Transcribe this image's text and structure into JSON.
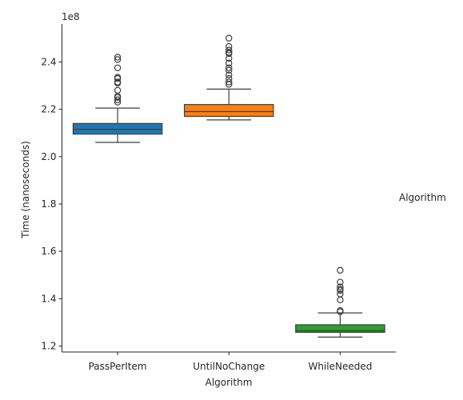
{
  "chart_data": {
    "type": "box",
    "xlabel": "Algorithm",
    "ylabel": "Time (nanoseconds)",
    "y_scale_label": "1e8",
    "legend_title": "Algorithm",
    "ylim": [
      1.175,
      2.56
    ],
    "ytick_values": [
      1.2,
      1.4,
      1.6,
      1.8,
      2.0,
      2.2,
      2.4
    ],
    "ytick_labels": [
      "1.2",
      "1.4",
      "1.6",
      "1.8",
      "2.0",
      "2.2",
      "2.4"
    ],
    "categories": [
      "PassPerItem",
      "UntilNoChange",
      "WhileNeeded"
    ],
    "grid": false,
    "series": [
      {
        "category": "PassPerItem",
        "color": "#1f77b4",
        "whisker_low": 2.06,
        "q1": 2.095,
        "median": 2.115,
        "q3": 2.14,
        "whisker_high": 2.205,
        "outliers": [
          2.23,
          2.24,
          2.25,
          2.255,
          2.28,
          2.31,
          2.315,
          2.33,
          2.335,
          2.375,
          2.41,
          2.42
        ]
      },
      {
        "category": "UntilNoChange",
        "color": "#ff7f0e",
        "whisker_low": 2.155,
        "q1": 2.17,
        "median": 2.19,
        "q3": 2.22,
        "whisker_high": 2.285,
        "outliers": [
          2.305,
          2.315,
          2.33,
          2.345,
          2.365,
          2.375,
          2.395,
          2.415,
          2.435,
          2.44,
          2.45,
          2.465,
          2.5
        ]
      },
      {
        "category": "WhileNeeded",
        "color": "#2ca02c",
        "whisker_low": 1.238,
        "q1": 1.258,
        "median": 1.265,
        "q3": 1.29,
        "whisker_high": 1.34,
        "outliers": [
          1.345,
          1.35,
          1.395,
          1.42,
          1.435,
          1.44,
          1.45,
          1.47,
          1.52
        ]
      }
    ]
  }
}
